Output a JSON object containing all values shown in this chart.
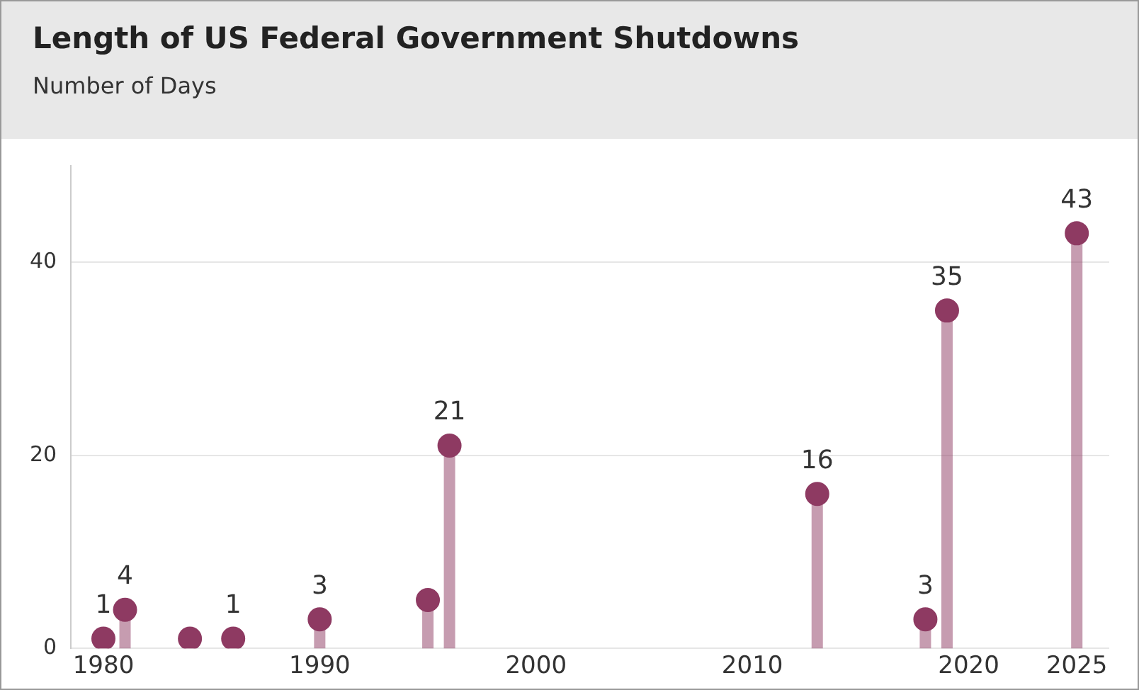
{
  "chart_data": {
    "type": "lollipop",
    "title": "Length of US Federal Government Shutdowns",
    "subtitle": "Number of Days",
    "x": [
      1980,
      1981,
      1984,
      1986,
      1990,
      1995,
      1996,
      2013,
      2018,
      2019,
      2025
    ],
    "values": [
      1,
      4,
      1,
      1,
      3,
      5,
      21,
      16,
      3,
      35,
      43
    ],
    "value_labels": [
      "1",
      "4",
      null,
      "1",
      "3",
      null,
      "21",
      "16",
      "3",
      "35",
      "43"
    ],
    "color": "#8e3a62",
    "xlim": [
      1978.5,
      2026.5
    ],
    "xticks": [
      1980,
      1990,
      2000,
      2010,
      2020,
      2025
    ],
    "ylim": [
      0,
      50
    ],
    "yticks": [
      0,
      20,
      40
    ],
    "grid": "y",
    "legend": false,
    "marker": "circle"
  }
}
